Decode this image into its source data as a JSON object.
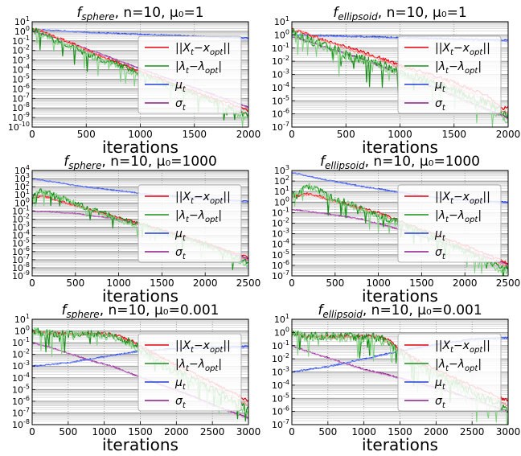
{
  "figure": {
    "series_labels": [
      "||X_t − x_opt||",
      "|λ_t − λ_opt|",
      "μ_t",
      "σ_t"
    ],
    "series_colors": [
      "#e8000b",
      "#1a8f1a",
      "#1f3fd6",
      "#8b1a8b"
    ],
    "light_colors": [
      "#ff7f7f",
      "#7fd07f",
      "#7f8fff",
      "#c77fc7"
    ]
  },
  "chart_data": [
    {
      "type": "line",
      "title": "f_sphere, n=10, μ_0=1",
      "title_main": "f",
      "title_sub": "sphere",
      "title_rest": ", n=10, μ₀=1",
      "xlabel": "iterations",
      "xlim": [
        0,
        2000
      ],
      "xticks": [
        0,
        500,
        1000,
        1500,
        2000
      ],
      "ylog": true,
      "ylim_exp": [
        -10,
        1
      ],
      "yticks_exp": [
        -10,
        -9,
        -8,
        -7,
        -6,
        -5,
        -4,
        -3,
        -2,
        -1,
        0,
        1
      ],
      "legend_position": "center-right",
      "series": [
        {
          "x": [
            0,
            100,
            200,
            400,
            600,
            800,
            1000,
            1200,
            1400,
            1600,
            1800,
            2000
          ],
          "y_exp": [
            0.3,
            0.0,
            -0.5,
            -1.4,
            -2.4,
            -3.3,
            -4.2,
            -5.0,
            -5.9,
            -6.7,
            -7.4,
            -8.3
          ]
        },
        {
          "x": [
            0,
            100,
            200,
            400,
            600,
            800,
            1000,
            1200,
            1400,
            1600,
            1800,
            2000
          ],
          "y_exp": [
            0.2,
            -0.3,
            -0.9,
            -1.7,
            -2.8,
            -3.5,
            -4.4,
            -5.3,
            -6.1,
            -7.0,
            -7.8,
            -8.9
          ]
        },
        {
          "x": [
            0,
            200,
            500,
            1000,
            1500,
            2000
          ],
          "y_exp": [
            0.2,
            0.1,
            -0.1,
            -0.3,
            -0.5,
            -0.7
          ]
        },
        {
          "x": [
            0,
            200,
            500,
            1000,
            1500,
            2000
          ],
          "y_exp": [
            0.0,
            -0.6,
            -1.8,
            -3.9,
            -5.9,
            -7.9
          ]
        }
      ]
    },
    {
      "type": "line",
      "title": "f_ellipsoid, n=10, μ_0=1",
      "title_main": "f",
      "title_sub": "ellipsoid",
      "title_rest": ", n=10, μ₀=1",
      "xlabel": "iterations",
      "xlim": [
        0,
        2000
      ],
      "xticks": [
        0,
        500,
        1000,
        1500,
        2000
      ],
      "ylog": true,
      "ylim_exp": [
        -7,
        1
      ],
      "yticks_exp": [
        -7,
        -6,
        -5,
        -4,
        -3,
        -2,
        -1,
        0,
        1
      ],
      "legend_position": "center-right",
      "series": [
        {
          "x": [
            0,
            100,
            300,
            500,
            800,
            1000,
            1200,
            1500,
            1800,
            1950,
            2000
          ],
          "y_exp": [
            0.4,
            0.2,
            -0.4,
            -0.9,
            -1.7,
            -2.3,
            -2.8,
            -3.6,
            -4.6,
            -5.6,
            -5.4
          ]
        },
        {
          "x": [
            0,
            100,
            300,
            500,
            800,
            1000,
            1200,
            1500,
            1800,
            2000
          ],
          "y_exp": [
            0.3,
            -0.2,
            -0.8,
            -1.5,
            -2.2,
            -2.8,
            -3.4,
            -4.2,
            -5.2,
            -6.1
          ]
        },
        {
          "x": [
            0,
            500,
            1000,
            1500,
            2000
          ],
          "y_exp": [
            0.0,
            -0.1,
            -0.2,
            -0.3,
            -0.4
          ]
        },
        {
          "x": [
            0,
            300,
            600,
            1000,
            1500,
            2000
          ],
          "y_exp": [
            -0.1,
            -0.9,
            -1.7,
            -2.9,
            -4.6,
            -6.3
          ]
        }
      ]
    },
    {
      "type": "line",
      "title": "f_sphere, n=10, μ_0=1000",
      "title_main": "f",
      "title_sub": "sphere",
      "title_rest": ", n=10, μ₀=1000",
      "xlabel": "iterations",
      "xlim": [
        0,
        2500
      ],
      "xticks": [
        0,
        500,
        1000,
        1500,
        2000,
        2500
      ],
      "ylog": true,
      "ylim_exp": [
        -9,
        4
      ],
      "yticks_exp": [
        -9,
        -8,
        -7,
        -6,
        -5,
        -4,
        -3,
        -2,
        -1,
        0,
        1,
        2,
        3,
        4
      ],
      "legend_position": "center-right",
      "series": [
        {
          "x": [
            0,
            100,
            300,
            600,
            1000,
            1500,
            2000,
            2500
          ],
          "y_exp": [
            0.5,
            0.9,
            0.3,
            -0.6,
            -1.8,
            -3.3,
            -4.9,
            -6.7
          ]
        },
        {
          "x": [
            0,
            100,
            300,
            600,
            1000,
            1500,
            2000,
            2500
          ],
          "y_exp": [
            0.6,
            1.5,
            0.8,
            -0.5,
            -1.9,
            -3.5,
            -5.1,
            -7.3
          ]
        },
        {
          "x": [
            0,
            300,
            600,
            1000,
            1400,
            1800,
            2200,
            2500
          ],
          "y_exp": [
            3.0,
            2.5,
            2.0,
            1.5,
            1.0,
            0.7,
            0.4,
            0.2
          ]
        },
        {
          "x": [
            0,
            200,
            500,
            1000,
            1500,
            2000,
            2500
          ],
          "y_exp": [
            -1.0,
            -1.1,
            -1.3,
            -2.0,
            -3.4,
            -5.0,
            -6.9
          ]
        }
      ]
    },
    {
      "type": "line",
      "title": "f_ellipsoid, n=10, μ_0=1000",
      "title_main": "f",
      "title_sub": "ellipsoid",
      "title_rest": ", n=10, μ₀=1000",
      "xlabel": "iterations",
      "xlim": [
        0,
        2500
      ],
      "xticks": [
        0,
        500,
        1000,
        1500,
        2000,
        2500
      ],
      "ylog": true,
      "ylim_exp": [
        -7,
        3
      ],
      "yticks_exp": [
        -7,
        -6,
        -5,
        -4,
        -3,
        -2,
        -1,
        0,
        1,
        2,
        3
      ],
      "legend_position": "center-right",
      "series": [
        {
          "x": [
            0,
            200,
            500,
            1000,
            1500,
            2000,
            2500
          ],
          "y_exp": [
            0.5,
            0.8,
            0.1,
            -1.0,
            -2.6,
            -4.1,
            -5.8
          ]
        },
        {
          "x": [
            0,
            200,
            500,
            1000,
            1500,
            2000,
            2500
          ],
          "y_exp": [
            0.6,
            1.5,
            0.3,
            -1.2,
            -2.8,
            -4.6,
            -6.4
          ]
        },
        {
          "x": [
            0,
            400,
            800,
            1200,
            1600,
            2000,
            2500
          ],
          "y_exp": [
            2.8,
            2.1,
            1.5,
            1.0,
            0.5,
            0.2,
            0.0
          ]
        },
        {
          "x": [
            0,
            300,
            800,
            1300,
            1800,
            2500
          ],
          "y_exp": [
            -0.7,
            -1.0,
            -1.6,
            -2.7,
            -4.0,
            -5.9
          ]
        }
      ]
    },
    {
      "type": "line",
      "title": "f_sphere, n=10, μ_0=0.001",
      "title_main": "f",
      "title_sub": "sphere",
      "title_rest": ", n=10, μ₀=0.001",
      "xlabel": "iterations",
      "xlim": [
        0,
        3000
      ],
      "xticks": [
        0,
        500,
        1000,
        1500,
        2000,
        2500,
        3000
      ],
      "ylog": true,
      "ylim_exp": [
        -8,
        1
      ],
      "yticks_exp": [
        -8,
        -7,
        -6,
        -5,
        -4,
        -3,
        -2,
        -1,
        0,
        1
      ],
      "legend_position": "center-right",
      "series": [
        {
          "x": [
            0,
            200,
            600,
            1000,
            1200,
            1400,
            1600,
            1800,
            2000,
            2400,
            2800,
            3000
          ],
          "y_exp": [
            0.0,
            -0.2,
            -0.2,
            -0.2,
            -0.4,
            -0.9,
            -1.6,
            -2.3,
            -2.9,
            -4.1,
            -5.3,
            -6.0
          ]
        },
        {
          "x": [
            0,
            200,
            600,
            1000,
            1200,
            1400,
            1600,
            1800,
            2000,
            2400,
            2800,
            3000
          ],
          "y_exp": [
            0.0,
            -0.2,
            -0.2,
            -0.3,
            -0.5,
            -1.1,
            -2.0,
            -2.8,
            -3.5,
            -4.7,
            -5.9,
            -6.6
          ]
        },
        {
          "x": [
            0,
            500,
            1000,
            1500,
            2000,
            2500,
            3000
          ],
          "y_exp": [
            -3.0,
            -2.7,
            -2.2,
            -1.7,
            -1.5,
            -1.4,
            -1.3
          ]
        },
        {
          "x": [
            0,
            200,
            500,
            800,
            1100,
            1400,
            1800,
            2200,
            2600,
            3000
          ],
          "y_exp": [
            -1.0,
            -1.3,
            -1.9,
            -2.5,
            -3.0,
            -3.7,
            -4.6,
            -5.5,
            -6.5,
            -7.4
          ]
        }
      ]
    },
    {
      "type": "line",
      "title": "f_ellipsoid, n=10, μ_0=0.001",
      "title_main": "f",
      "title_sub": "ellipsoid",
      "title_rest": ", n=10, μ₀=0.001",
      "xlabel": "iterations",
      "xlim": [
        0,
        3000
      ],
      "xticks": [
        0,
        500,
        1000,
        1500,
        2000,
        2500,
        3000
      ],
      "ylog": true,
      "ylim_exp": [
        -7,
        1
      ],
      "yticks_exp": [
        -7,
        -6,
        -5,
        -4,
        -3,
        -2,
        -1,
        0,
        1
      ],
      "legend_position": "center-right",
      "series": [
        {
          "x": [
            0,
            200,
            800,
            1200,
            1350,
            1500,
            1800,
            2200,
            2600,
            3000
          ],
          "y_exp": [
            0.0,
            -0.3,
            -0.3,
            -0.3,
            -0.6,
            -1.3,
            -2.3,
            -3.3,
            -4.3,
            -5.2
          ]
        },
        {
          "x": [
            0,
            200,
            800,
            1200,
            1350,
            1500,
            1800,
            2200,
            2600,
            3000
          ],
          "y_exp": [
            0.0,
            -0.3,
            -0.3,
            -0.4,
            -0.8,
            -1.6,
            -2.6,
            -3.6,
            -4.8,
            -5.8
          ]
        },
        {
          "x": [
            0,
            500,
            1000,
            1500,
            2000,
            2500,
            3000
          ],
          "y_exp": [
            -3.0,
            -2.6,
            -2.0,
            -1.4,
            -0.9,
            -0.5,
            -0.4
          ]
        },
        {
          "x": [
            0,
            200,
            600,
            1000,
            1400,
            1800,
            2200,
            2600,
            3000
          ],
          "y_exp": [
            -1.0,
            -1.4,
            -2.1,
            -2.8,
            -3.3,
            -3.9,
            -4.5,
            -5.2,
            -6.0
          ]
        }
      ]
    }
  ]
}
